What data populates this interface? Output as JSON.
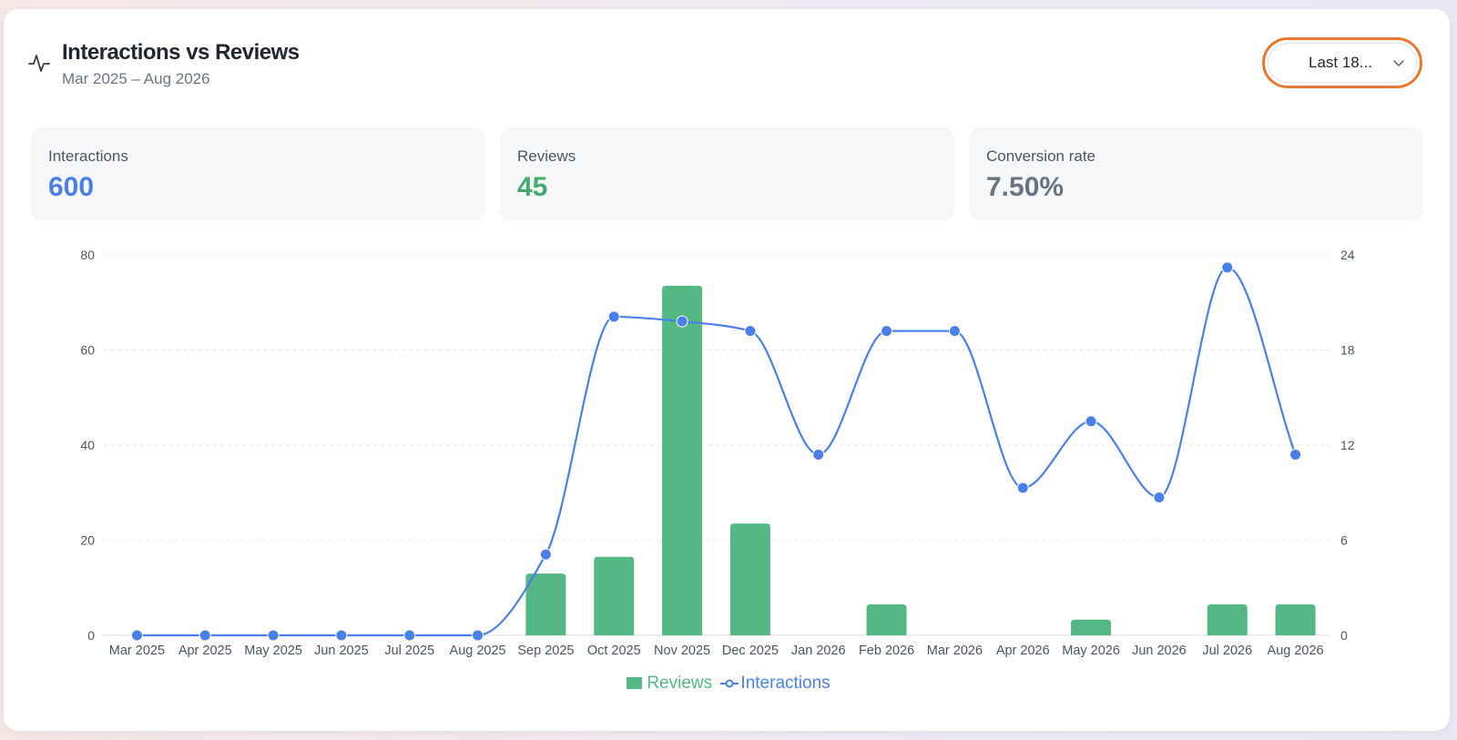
{
  "header": {
    "title": "Interactions vs Reviews",
    "subtitle": "Mar 2025 – Aug 2026",
    "icon": "activity-pulse-icon"
  },
  "range_select": {
    "value": "Last 18...",
    "icon": "chevron-down-icon"
  },
  "stats": [
    {
      "label": "Interactions",
      "value": "600",
      "color": "#4a7fe8"
    },
    {
      "label": "Reviews",
      "value": "45",
      "color": "#45a86f"
    },
    {
      "label": "Conversion rate",
      "value": "7.50%",
      "color": "#6b7280"
    }
  ],
  "chart_data": {
    "type": "bar",
    "categories": [
      "Mar 2025",
      "Apr 2025",
      "May 2025",
      "Jun 2025",
      "Jul 2025",
      "Aug 2025",
      "Sep 2025",
      "Oct 2025",
      "Nov 2025",
      "Dec 2025",
      "Jan 2026",
      "Feb 2026",
      "Mar 2026",
      "Apr 2026",
      "May 2026",
      "Jun 2026",
      "Jul 2026",
      "Aug 2026"
    ],
    "series": [
      {
        "name": "Reviews",
        "type": "bar",
        "axis": "left",
        "color": "#55b783",
        "values": [
          0,
          0,
          0,
          0,
          0,
          0,
          13,
          16.5,
          73.5,
          23.5,
          0,
          6.5,
          0,
          0,
          3.3,
          0,
          6.5,
          6.5
        ]
      },
      {
        "name": "Interactions",
        "type": "line",
        "axis": "right",
        "color": "#4a7fe8",
        "values": [
          0,
          0,
          0,
          0,
          0,
          0,
          5.1,
          20.1,
          19.8,
          19.2,
          11.4,
          19.2,
          19.2,
          9.3,
          13.5,
          8.7,
          23.2,
          11.4
        ]
      }
    ],
    "left_axis": {
      "ylim": [
        0,
        80
      ],
      "ticks": [
        "0",
        "20",
        "40",
        "60",
        "80"
      ]
    },
    "right_axis": {
      "ylim": [
        0,
        24
      ],
      "ticks": [
        "0",
        "6",
        "12",
        "18",
        "24"
      ]
    },
    "grid": "horizontal dashed",
    "legend": {
      "position": "bottom-center",
      "items": [
        "Reviews",
        "Interactions"
      ]
    }
  }
}
